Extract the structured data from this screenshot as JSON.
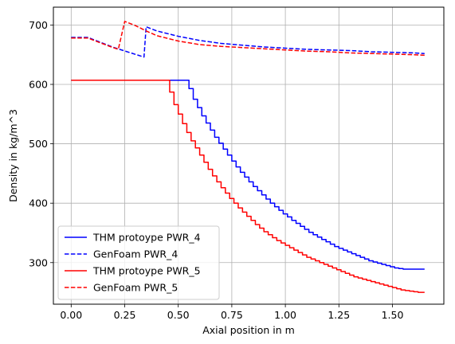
{
  "chart_data": {
    "type": "line",
    "title": "",
    "xlabel": "Axial position in m",
    "ylabel": "Density in kg/m^3",
    "xlim": [
      -0.083,
      1.74
    ],
    "ylim": [
      230,
      730
    ],
    "xticks": [
      0.0,
      0.25,
      0.5,
      0.75,
      1.0,
      1.25,
      1.5
    ],
    "xtick_labels": [
      "0.00",
      "0.25",
      "0.50",
      "0.75",
      "1.00",
      "1.25",
      "1.50"
    ],
    "yticks": [
      300,
      400,
      500,
      600,
      700
    ],
    "ytick_labels": [
      "300",
      "400",
      "500",
      "600",
      "700"
    ],
    "grid": true,
    "legend_position": "lower-left",
    "series": [
      {
        "name": "THM protoype PWR_4",
        "color": "#0000ff",
        "dash": "solid",
        "step": true,
        "x": [
          0.0,
          0.55,
          0.57,
          0.59,
          0.61,
          0.63,
          0.65,
          0.67,
          0.69,
          0.71,
          0.73,
          0.75,
          0.77,
          0.79,
          0.81,
          0.83,
          0.85,
          0.87,
          0.89,
          0.91,
          0.93,
          0.95,
          0.97,
          0.99,
          1.01,
          1.03,
          1.05,
          1.07,
          1.09,
          1.11,
          1.13,
          1.15,
          1.17,
          1.19,
          1.21,
          1.23,
          1.25,
          1.27,
          1.29,
          1.31,
          1.33,
          1.35,
          1.37,
          1.39,
          1.41,
          1.43,
          1.45,
          1.47,
          1.49,
          1.51,
          1.53,
          1.55,
          1.57,
          1.59,
          1.61,
          1.63,
          1.65
        ],
        "y": [
          607,
          593,
          575,
          561,
          547,
          535,
          523,
          511,
          501,
          491,
          481,
          471,
          461,
          452,
          444,
          436,
          428,
          421,
          414,
          407,
          400,
          394,
          388,
          382,
          377,
          371,
          366,
          361,
          356,
          351,
          347,
          343,
          339,
          335,
          331,
          327,
          324,
          321,
          318,
          315,
          312,
          309,
          306,
          303,
          301,
          299,
          297,
          295,
          293,
          291,
          290,
          289,
          289,
          289,
          289,
          289,
          289
        ]
      },
      {
        "name": "GenFoam PWR_4",
        "color": "#0000ff",
        "dash": "dashed",
        "step": false,
        "x": [
          0.0,
          0.08,
          0.1,
          0.2,
          0.34,
          0.35,
          0.4,
          0.5,
          0.6,
          0.7,
          0.8,
          0.9,
          1.0,
          1.1,
          1.2,
          1.3,
          1.4,
          1.5,
          1.6,
          1.65
        ],
        "y": [
          679,
          679,
          676,
          662,
          646,
          697,
          690,
          681,
          674,
          669,
          666,
          663,
          661,
          659,
          658,
          657,
          655,
          654,
          653,
          652
        ]
      },
      {
        "name": "THM protoype PWR_5",
        "color": "#ff0000",
        "dash": "solid",
        "step": true,
        "x": [
          0.0,
          0.46,
          0.48,
          0.5,
          0.52,
          0.54,
          0.56,
          0.58,
          0.6,
          0.62,
          0.64,
          0.66,
          0.68,
          0.7,
          0.72,
          0.74,
          0.76,
          0.78,
          0.8,
          0.82,
          0.84,
          0.86,
          0.88,
          0.9,
          0.92,
          0.94,
          0.96,
          0.98,
          1.0,
          1.02,
          1.04,
          1.06,
          1.08,
          1.1,
          1.12,
          1.14,
          1.16,
          1.18,
          1.2,
          1.22,
          1.24,
          1.26,
          1.28,
          1.3,
          1.32,
          1.34,
          1.36,
          1.38,
          1.4,
          1.42,
          1.44,
          1.46,
          1.48,
          1.5,
          1.52,
          1.54,
          1.56,
          1.58,
          1.6,
          1.62,
          1.64,
          1.65
        ],
        "y": [
          607,
          587,
          566,
          550,
          534,
          519,
          505,
          493,
          481,
          469,
          457,
          446,
          436,
          426,
          417,
          408,
          400,
          392,
          385,
          378,
          371,
          364,
          358,
          352,
          347,
          342,
          337,
          333,
          329,
          325,
          321,
          317,
          313,
          309,
          306,
          303,
          300,
          297,
          294,
          291,
          288,
          285,
          282,
          279,
          276,
          274,
          272,
          270,
          268,
          266,
          264,
          262,
          260,
          258,
          256,
          254,
          253,
          252,
          251,
          250,
          250,
          250
        ]
      },
      {
        "name": "GenFoam PWR_5",
        "color": "#ff0000",
        "dash": "dashed",
        "step": false,
        "x": [
          0.0,
          0.08,
          0.1,
          0.18,
          0.22,
          0.25,
          0.3,
          0.35,
          0.4,
          0.5,
          0.6,
          0.7,
          0.8,
          0.9,
          1.0,
          1.1,
          1.2,
          1.3,
          1.4,
          1.5,
          1.6,
          1.65
        ],
        "y": [
          678,
          678,
          675,
          664,
          659,
          706,
          699,
          690,
          682,
          673,
          667,
          664,
          662,
          660,
          658,
          656,
          655,
          653,
          652,
          651,
          650,
          649
        ]
      }
    ]
  }
}
